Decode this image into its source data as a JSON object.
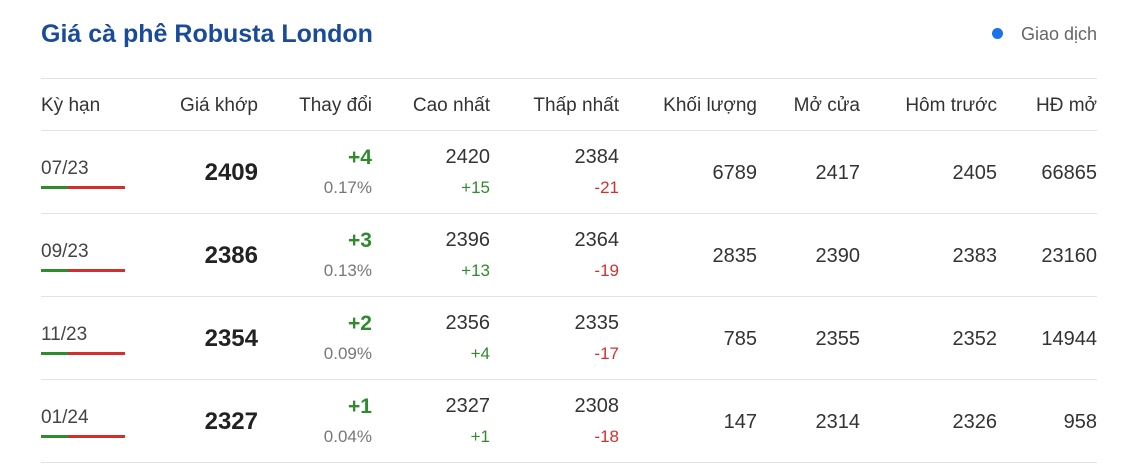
{
  "header": {
    "title": "Giá cà phê Robusta London",
    "status": "Giao dịch"
  },
  "table": {
    "columns": [
      "Kỳ hạn",
      "Giá khớp",
      "Thay đổi",
      "Cao nhất",
      "Thấp nhất",
      "Khối lượng",
      "Mở cửa",
      "Hôm trước",
      "HĐ mở"
    ],
    "rows": [
      {
        "term": "07/23",
        "price": "2409",
        "change": "+4",
        "change_pct": "0.17%",
        "high": "2420",
        "high_diff": "+15",
        "low": "2384",
        "low_diff": "-21",
        "volume": "6789",
        "open": "2417",
        "prev": "2405",
        "open_interest": "66865"
      },
      {
        "term": "09/23",
        "price": "2386",
        "change": "+3",
        "change_pct": "0.13%",
        "high": "2396",
        "high_diff": "+13",
        "low": "2364",
        "low_diff": "-19",
        "volume": "2835",
        "open": "2390",
        "prev": "2383",
        "open_interest": "23160"
      },
      {
        "term": "11/23",
        "price": "2354",
        "change": "+2",
        "change_pct": "0.09%",
        "high": "2356",
        "high_diff": "+4",
        "low": "2335",
        "low_diff": "-17",
        "volume": "785",
        "open": "2355",
        "prev": "2352",
        "open_interest": "14944"
      },
      {
        "term": "01/24",
        "price": "2327",
        "change": "+1",
        "change_pct": "0.04%",
        "high": "2327",
        "high_diff": "+1",
        "low": "2308",
        "low_diff": "-18",
        "volume": "147",
        "open": "2314",
        "prev": "2326",
        "open_interest": "958"
      }
    ]
  }
}
